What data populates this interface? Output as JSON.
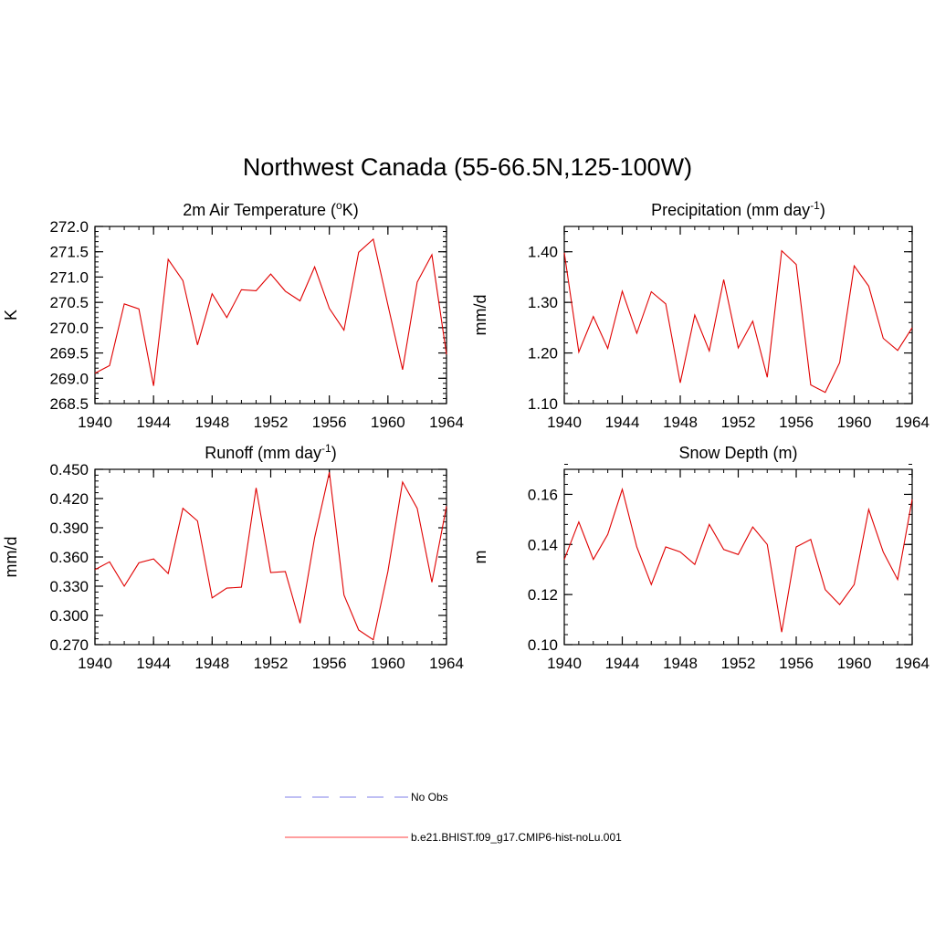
{
  "figure": {
    "title": "Northwest Canada (55-66.5N,125-100W)"
  },
  "chart_data": [
    {
      "type": "line",
      "title": "2m Air Temperature (°K)",
      "title_parts": [
        "2m Air Temperature (",
        "o",
        "K)"
      ],
      "xlabel": "",
      "ylabel": "K",
      "xlim": [
        1940,
        1964
      ],
      "ylim": [
        268.5,
        272.0
      ],
      "x_ticks": [
        1940,
        1944,
        1948,
        1952,
        1956,
        1960,
        1964
      ],
      "y_ticks": [
        "268.5",
        "269.0",
        "269.5",
        "270.0",
        "270.5",
        "271.0",
        "271.5",
        "272.0"
      ],
      "y_minor_step": 0.1,
      "series": [
        {
          "color": "#e00000",
          "x": [
            1940,
            1941,
            1942,
            1943,
            1944,
            1945,
            1946,
            1947,
            1948,
            1949,
            1950,
            1951,
            1952,
            1953,
            1954,
            1955,
            1956,
            1957,
            1958,
            1959,
            1960,
            1961,
            1962,
            1963,
            1964
          ],
          "values": [
            269.1,
            269.25,
            270.47,
            270.37,
            268.85,
            271.35,
            270.93,
            269.66,
            270.67,
            270.2,
            270.75,
            270.73,
            271.06,
            270.72,
            270.53,
            271.2,
            270.38,
            269.95,
            271.49,
            271.75,
            270.45,
            269.17,
            270.9,
            271.44,
            269.47
          ]
        }
      ]
    },
    {
      "type": "line",
      "title": "Precipitation (mm day-1)",
      "title_parts": [
        "Precipitation (mm day",
        "-1",
        ")"
      ],
      "xlabel": "",
      "ylabel": "mm/d",
      "xlim": [
        1940,
        1964
      ],
      "ylim": [
        1.1,
        1.45
      ],
      "x_ticks": [
        1940,
        1944,
        1948,
        1952,
        1956,
        1960,
        1964
      ],
      "y_ticks": [
        "1.10",
        "1.20",
        "1.30",
        "1.40"
      ],
      "y_minor_step": 0.02,
      "series": [
        {
          "color": "#e00000",
          "x": [
            1940,
            1941,
            1942,
            1943,
            1944,
            1945,
            1946,
            1947,
            1948,
            1949,
            1950,
            1951,
            1952,
            1953,
            1954,
            1955,
            1956,
            1957,
            1958,
            1959,
            1960,
            1961,
            1962,
            1963,
            1964
          ],
          "values": [
            1.398,
            1.202,
            1.272,
            1.209,
            1.322,
            1.239,
            1.321,
            1.297,
            1.141,
            1.275,
            1.204,
            1.345,
            1.21,
            1.263,
            1.152,
            1.402,
            1.375,
            1.137,
            1.122,
            1.181,
            1.372,
            1.332,
            1.229,
            1.205,
            1.25
          ]
        }
      ]
    },
    {
      "type": "line",
      "title": "Runoff (mm day-1)",
      "title_parts": [
        "Runoff (mm day",
        "-1",
        ")"
      ],
      "xlabel": "",
      "ylabel": "mm/d",
      "xlim": [
        1940,
        1964
      ],
      "ylim": [
        0.27,
        0.45
      ],
      "x_ticks": [
        1940,
        1944,
        1948,
        1952,
        1956,
        1960,
        1964
      ],
      "y_ticks": [
        "0.270",
        "0.300",
        "0.330",
        "0.360",
        "0.390",
        "0.420",
        "0.450"
      ],
      "y_minor_step": 0.006,
      "series": [
        {
          "color": "#e00000",
          "x": [
            1940,
            1941,
            1942,
            1943,
            1944,
            1945,
            1946,
            1947,
            1948,
            1949,
            1950,
            1951,
            1952,
            1953,
            1954,
            1955,
            1956,
            1957,
            1958,
            1959,
            1960,
            1961,
            1962,
            1963,
            1964
          ],
          "values": [
            0.347,
            0.355,
            0.33,
            0.354,
            0.358,
            0.343,
            0.41,
            0.397,
            0.318,
            0.328,
            0.329,
            0.431,
            0.344,
            0.345,
            0.292,
            0.38,
            0.447,
            0.321,
            0.285,
            0.275,
            0.345,
            0.437,
            0.41,
            0.334,
            0.412
          ]
        }
      ]
    },
    {
      "type": "line",
      "title": "Snow Depth (m)",
      "title_parts": [
        "Snow Depth (m)",
        "",
        ""
      ],
      "xlabel": "",
      "ylabel": "m",
      "xlim": [
        1940,
        1964
      ],
      "ylim": [
        0.1,
        0.17
      ],
      "x_ticks": [
        1940,
        1944,
        1948,
        1952,
        1956,
        1960,
        1964
      ],
      "y_ticks": [
        "0.10",
        "0.12",
        "0.14",
        "0.16"
      ],
      "y_minor_step": 0.004,
      "series": [
        {
          "color": "#e00000",
          "x": [
            1940,
            1941,
            1942,
            1943,
            1944,
            1945,
            1946,
            1947,
            1948,
            1949,
            1950,
            1951,
            1952,
            1953,
            1954,
            1955,
            1956,
            1957,
            1958,
            1959,
            1960,
            1961,
            1962,
            1963,
            1964
          ],
          "values": [
            0.134,
            0.149,
            0.134,
            0.144,
            0.162,
            0.139,
            0.124,
            0.139,
            0.137,
            0.132,
            0.148,
            0.138,
            0.136,
            0.147,
            0.14,
            0.105,
            0.139,
            0.142,
            0.122,
            0.116,
            0.124,
            0.154,
            0.137,
            0.126,
            0.158
          ]
        }
      ]
    }
  ],
  "legend": [
    {
      "label": "No Obs",
      "color": "#9999ee",
      "dash": "dashed"
    },
    {
      "label": "b.e21.BHIST.f09_g17.CMIP6-hist-noLu.001",
      "color": "#ff6666",
      "dash": "solid"
    }
  ]
}
